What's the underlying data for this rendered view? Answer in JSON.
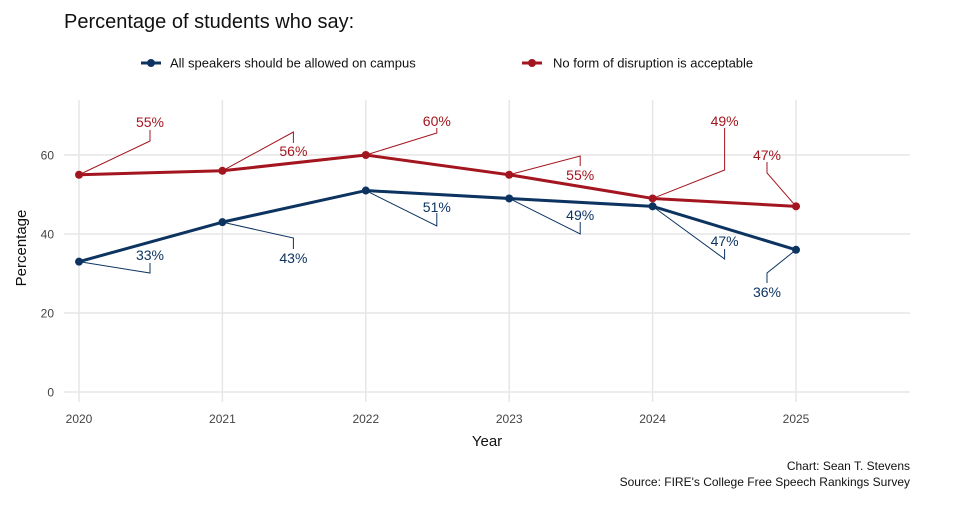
{
  "chart_data": {
    "type": "line",
    "title": "Percentage of students who say:",
    "xlabel": "Year",
    "ylabel": "Percentage",
    "x": [
      2020,
      2021,
      2022,
      2023,
      2024,
      2025
    ],
    "x_tick_labels": [
      "2020",
      "2021",
      "2022",
      "2023",
      "2024",
      "2025"
    ],
    "y_ticks": [
      0,
      20,
      40,
      60
    ],
    "y_tick_labels": [
      "0",
      "20",
      "40",
      "60"
    ],
    "ylim": [
      0,
      72
    ],
    "grid": true,
    "legend_position": "top",
    "series": [
      {
        "name": "All speakers should be allowed on campus",
        "color": "#0d3461",
        "values": [
          33,
          43,
          51,
          49,
          47,
          36
        ],
        "labels": [
          "33%",
          "43%",
          "51%",
          "49%",
          "47%",
          "36%"
        ]
      },
      {
        "name": "No form of disruption is acceptable",
        "color": "#a3151f",
        "values": [
          55,
          56,
          60,
          55,
          49,
          47
        ],
        "labels": [
          "55%",
          "56%",
          "60%",
          "55%",
          "49%",
          "47%"
        ]
      }
    ],
    "caption": [
      "Chart: Sean T. Stevens",
      "Source: FIRE's College Free Speech Rankings Survey"
    ]
  }
}
